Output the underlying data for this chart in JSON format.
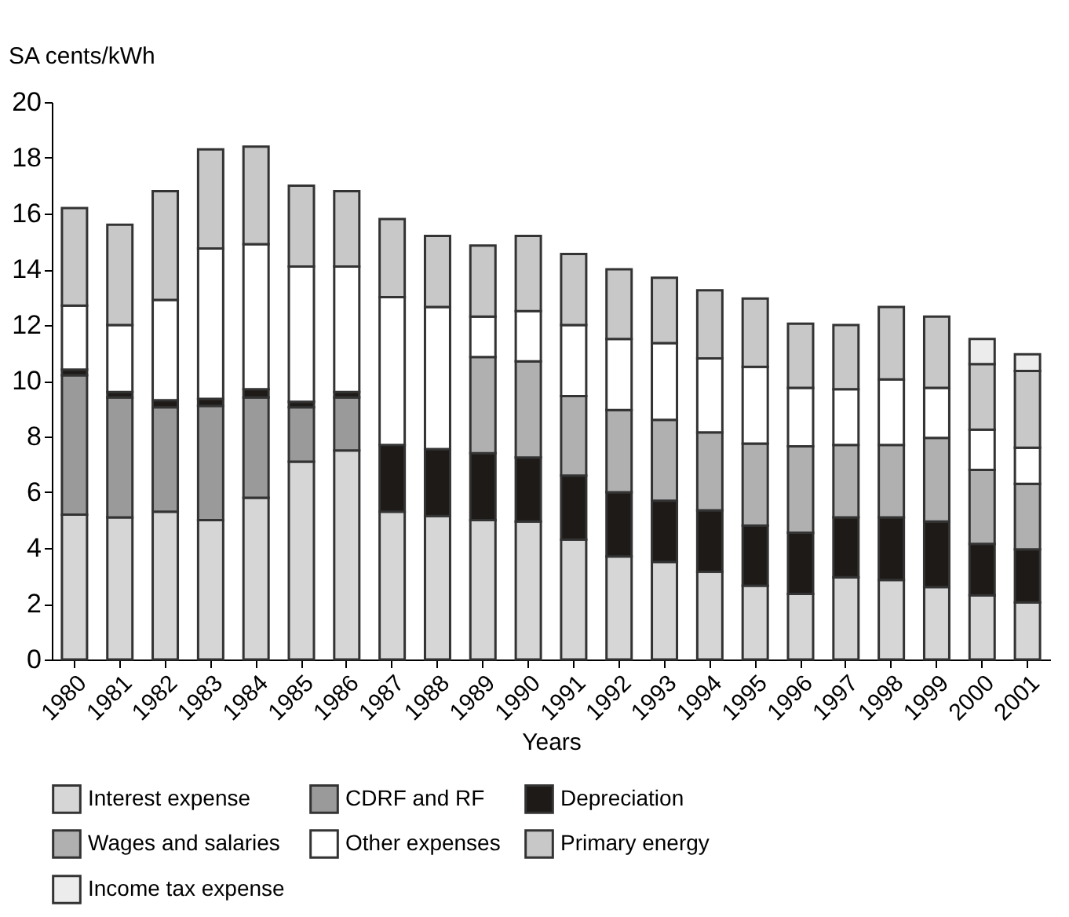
{
  "chart_data": {
    "type": "bar",
    "stacked": true,
    "xlabel": "Years",
    "ylabel": "SA cents/kWh",
    "categories": [
      "1980",
      "1981",
      "1982",
      "1983",
      "1984",
      "1985",
      "1986",
      "1987",
      "1988",
      "1989",
      "1990",
      "1991",
      "1992",
      "1993",
      "1994",
      "1995",
      "1996",
      "1997",
      "1998",
      "1999",
      "2000",
      "2001"
    ],
    "series": [
      {
        "name": "Interest expense",
        "color": "#d6d6d6",
        "values": [
          5.2,
          5.1,
          5.3,
          5.0,
          5.8,
          7.1,
          7.5,
          5.3,
          5.15,
          5.0,
          4.95,
          4.3,
          3.7,
          3.5,
          3.15,
          2.65,
          2.35,
          2.95,
          2.85,
          2.6,
          2.3,
          2.05
        ]
      },
      {
        "name": "CDRF and RF",
        "color": "#9a9a9a",
        "values": [
          5.0,
          4.3,
          3.75,
          4.1,
          3.6,
          1.95,
          1.9,
          null,
          null,
          null,
          null,
          null,
          null,
          null,
          null,
          null,
          null,
          null,
          null,
          null,
          null,
          null
        ]
      },
      {
        "name": "Depreciation",
        "color": "#1e1a18",
        "values": [
          0.2,
          0.2,
          0.25,
          0.25,
          0.3,
          0.2,
          0.2,
          2.4,
          2.4,
          2.4,
          2.3,
          2.3,
          2.3,
          2.2,
          2.2,
          2.15,
          2.2,
          2.15,
          2.25,
          2.35,
          1.85,
          1.9
        ]
      },
      {
        "name": "Wages and salaries",
        "color": "#b0b0b0",
        "values": [
          null,
          null,
          null,
          null,
          null,
          null,
          null,
          null,
          null,
          3.45,
          3.45,
          2.85,
          2.95,
          2.9,
          2.8,
          2.95,
          3.1,
          2.6,
          2.6,
          3.0,
          2.65,
          2.35
        ]
      },
      {
        "name": "Other expenses",
        "color": "#ffffff",
        "values": [
          2.3,
          2.4,
          3.6,
          5.4,
          5.2,
          4.85,
          4.5,
          5.3,
          5.1,
          1.45,
          1.8,
          2.55,
          2.55,
          2.75,
          2.65,
          2.75,
          2.1,
          2.0,
          2.35,
          1.8,
          1.45,
          1.3
        ]
      },
      {
        "name": "Primary energy",
        "color": "#c8c8c8",
        "values": [
          3.5,
          3.6,
          3.9,
          3.55,
          3.5,
          2.9,
          2.7,
          2.8,
          2.55,
          2.55,
          2.7,
          2.55,
          2.5,
          2.35,
          2.45,
          2.45,
          2.3,
          2.3,
          2.6,
          2.55,
          2.35,
          2.75
        ]
      },
      {
        "name": "Income tax expense",
        "color": "#ececec",
        "values": [
          null,
          null,
          null,
          null,
          null,
          null,
          null,
          null,
          null,
          null,
          null,
          null,
          null,
          null,
          null,
          null,
          null,
          null,
          null,
          null,
          0.9,
          0.6
        ]
      }
    ],
    "ylim": [
      0,
      20
    ],
    "yticks": [
      0,
      2,
      4,
      6,
      8,
      10,
      12,
      14,
      16,
      18,
      20
    ],
    "grid": false,
    "legend": "bottom"
  }
}
